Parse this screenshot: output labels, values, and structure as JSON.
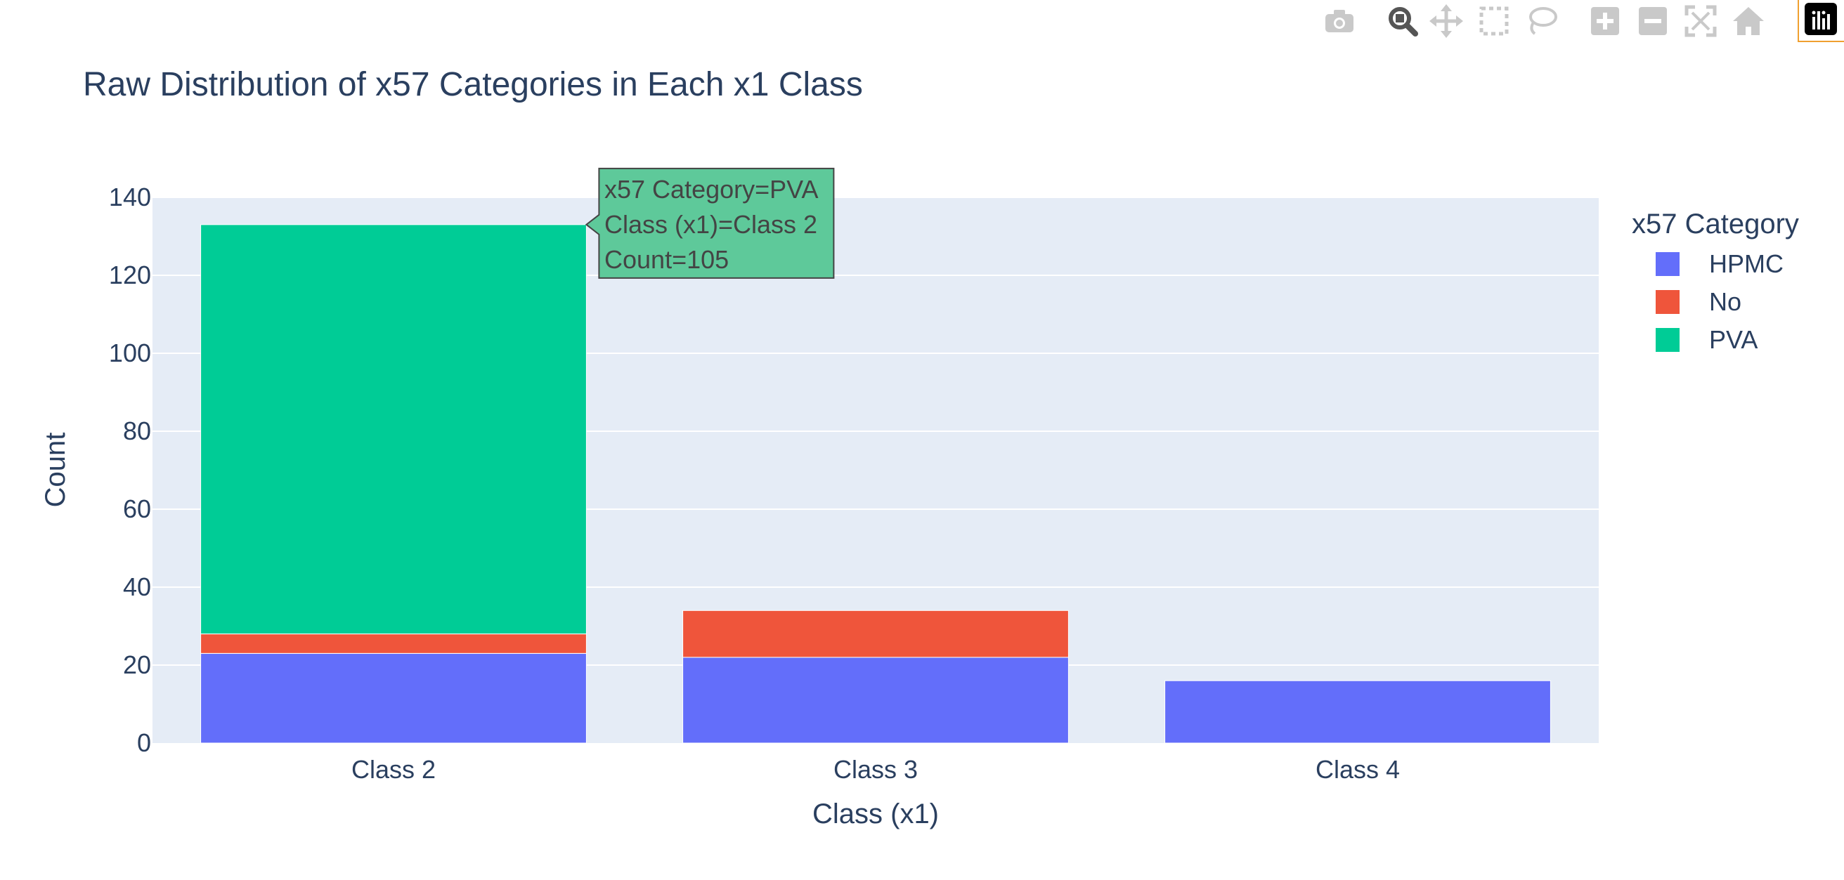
{
  "chart_data": {
    "type": "bar",
    "barmode": "stack",
    "title": "Raw Distribution of x57 Categories in Each x1 Class",
    "xlabel": "Class (x1)",
    "ylabel": "Count",
    "categories": [
      "Class 2",
      "Class 3",
      "Class 4"
    ],
    "series": [
      {
        "name": "HPMC",
        "color": "#636efa",
        "values": [
          23,
          22,
          16
        ]
      },
      {
        "name": "No",
        "color": "#ef553b",
        "values": [
          5,
          12,
          0
        ]
      },
      {
        "name": "PVA",
        "color": "#00cc96",
        "values": [
          105,
          0,
          0
        ]
      }
    ],
    "ylim": [
      0,
      140
    ],
    "yticks": [
      0,
      20,
      40,
      60,
      80,
      100,
      120,
      140
    ],
    "grid": true,
    "legend": {
      "title": "x57 Category",
      "placement": "top-right"
    },
    "hover": {
      "lines": [
        "x57 Category=PVA",
        "Class (x1)=Class 2",
        "Count=105"
      ],
      "color": "#5ec99a"
    },
    "colors": {
      "plot_bg": "#e5ecf6",
      "text": "#2a3f5f",
      "gridline": "#ffffff"
    }
  },
  "modebar": {
    "icons": [
      "camera-icon",
      "zoom-icon",
      "pan-icon",
      "box-select-icon",
      "lasso-select-icon",
      "zoom-in-icon",
      "zoom-out-icon",
      "autoscale-icon",
      "reset-axes-icon",
      "plotly-logo-icon"
    ]
  }
}
